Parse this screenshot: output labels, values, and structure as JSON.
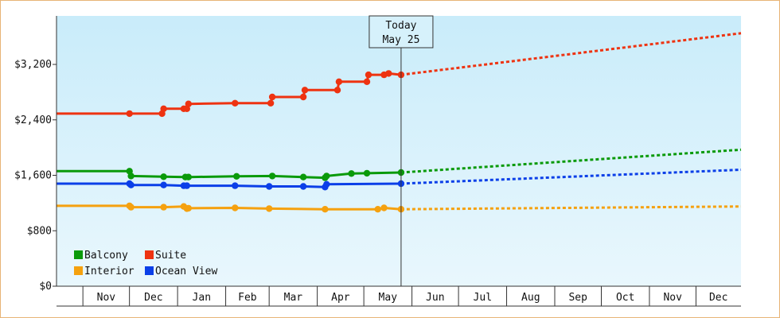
{
  "chart_data": {
    "type": "line",
    "title": "",
    "xlabel": "",
    "ylabel": "",
    "ylim": [
      0,
      3900
    ],
    "y_ticks": [
      {
        "value": 0,
        "label": "$0"
      },
      {
        "value": 800,
        "label": "$800"
      },
      {
        "value": 1600,
        "label": "$1,600"
      },
      {
        "value": 2400,
        "label": "$2,400"
      },
      {
        "value": 3200,
        "label": "$3,200"
      }
    ],
    "x_range": [
      "2024-10-15",
      "2025-12-30"
    ],
    "x_months": [
      {
        "label": "Nov",
        "start": "2024-11-01",
        "end": "2024-12-01"
      },
      {
        "label": "Dec",
        "start": "2024-12-01",
        "end": "2025-01-01"
      },
      {
        "label": "Jan",
        "start": "2025-01-01",
        "end": "2025-02-01"
      },
      {
        "label": "Feb",
        "start": "2025-02-01",
        "end": "2025-03-01"
      },
      {
        "label": "Mar",
        "start": "2025-03-01",
        "end": "2025-04-01"
      },
      {
        "label": "Apr",
        "start": "2025-04-01",
        "end": "2025-05-01"
      },
      {
        "label": "May",
        "start": "2025-05-01",
        "end": "2025-06-01"
      },
      {
        "label": "Jun",
        "start": "2025-06-01",
        "end": "2025-07-01"
      },
      {
        "label": "Jul",
        "start": "2025-07-01",
        "end": "2025-08-01"
      },
      {
        "label": "Aug",
        "start": "2025-08-01",
        "end": "2025-09-01"
      },
      {
        "label": "Sep",
        "start": "2025-09-01",
        "end": "2025-10-01"
      },
      {
        "label": "Oct",
        "start": "2025-10-01",
        "end": "2025-11-01"
      },
      {
        "label": "Nov",
        "start": "2025-11-01",
        "end": "2025-12-01"
      },
      {
        "label": "Dec",
        "start": "2025-12-01",
        "end": "2025-12-30"
      }
    ],
    "today": {
      "date": "2025-05-25",
      "label_line1": "Today",
      "label_line2": "May 25"
    },
    "series": [
      {
        "name": "Balcony",
        "color": "#0a9a0a",
        "points": [
          [
            "2024-10-15",
            1660
          ],
          [
            "2024-12-01",
            1660
          ],
          [
            "2024-12-02",
            1590
          ],
          [
            "2024-12-23",
            1580
          ],
          [
            "2025-01-06",
            1575
          ],
          [
            "2025-01-08",
            1575
          ],
          [
            "2025-02-08",
            1585
          ],
          [
            "2025-03-03",
            1590
          ],
          [
            "2025-03-23",
            1575
          ],
          [
            "2025-04-06",
            1565
          ],
          [
            "2025-04-07",
            1590
          ],
          [
            "2025-04-23",
            1625
          ],
          [
            "2025-05-03",
            1630
          ],
          [
            "2025-05-25",
            1640
          ]
        ],
        "forecast": [
          [
            "2025-05-25",
            1640
          ],
          [
            "2025-12-30",
            1970
          ]
        ]
      },
      {
        "name": "Suite",
        "color": "#ee3311",
        "points": [
          [
            "2024-10-15",
            2490
          ],
          [
            "2024-12-01",
            2490
          ],
          [
            "2024-12-22",
            2490
          ],
          [
            "2024-12-23",
            2560
          ],
          [
            "2025-01-05",
            2560
          ],
          [
            "2025-01-07",
            2560
          ],
          [
            "2025-01-08",
            2630
          ],
          [
            "2025-02-07",
            2640
          ],
          [
            "2025-03-02",
            2640
          ],
          [
            "2025-03-03",
            2730
          ],
          [
            "2025-03-23",
            2730
          ],
          [
            "2025-03-24",
            2830
          ],
          [
            "2025-04-14",
            2830
          ],
          [
            "2025-04-15",
            2950
          ],
          [
            "2025-05-03",
            2950
          ],
          [
            "2025-05-04",
            3050
          ],
          [
            "2025-05-14",
            3050
          ],
          [
            "2025-05-17",
            3070
          ],
          [
            "2025-05-25",
            3050
          ]
        ],
        "forecast": [
          [
            "2025-05-25",
            3050
          ],
          [
            "2025-12-30",
            3650
          ]
        ]
      },
      {
        "name": "Interior",
        "color": "#f5a10f",
        "points": [
          [
            "2024-10-15",
            1160
          ],
          [
            "2024-12-01",
            1160
          ],
          [
            "2024-12-02",
            1140
          ],
          [
            "2024-12-23",
            1140
          ],
          [
            "2025-01-05",
            1150
          ],
          [
            "2025-01-07",
            1120
          ],
          [
            "2025-01-08",
            1125
          ],
          [
            "2025-02-07",
            1130
          ],
          [
            "2025-03-01",
            1120
          ],
          [
            "2025-04-06",
            1110
          ],
          [
            "2025-05-10",
            1110
          ],
          [
            "2025-05-14",
            1130
          ],
          [
            "2025-05-25",
            1110
          ]
        ],
        "forecast": [
          [
            "2025-05-25",
            1110
          ],
          [
            "2025-12-30",
            1150
          ]
        ]
      },
      {
        "name": "Ocean View",
        "color": "#0b3fe8",
        "points": [
          [
            "2024-10-15",
            1480
          ],
          [
            "2024-12-01",
            1480
          ],
          [
            "2024-12-02",
            1460
          ],
          [
            "2024-12-23",
            1460
          ],
          [
            "2025-01-05",
            1450
          ],
          [
            "2025-01-07",
            1450
          ],
          [
            "2025-02-07",
            1450
          ],
          [
            "2025-03-01",
            1440
          ],
          [
            "2025-03-23",
            1440
          ],
          [
            "2025-04-06",
            1430
          ],
          [
            "2025-04-07",
            1470
          ],
          [
            "2025-05-25",
            1480
          ]
        ],
        "forecast": [
          [
            "2025-05-25",
            1480
          ],
          [
            "2025-12-30",
            1680
          ]
        ]
      }
    ],
    "legend": {
      "placement": "bottom-left",
      "order": [
        "Balcony",
        "Suite",
        "Interior",
        "Ocean View"
      ]
    },
    "grid": false
  }
}
